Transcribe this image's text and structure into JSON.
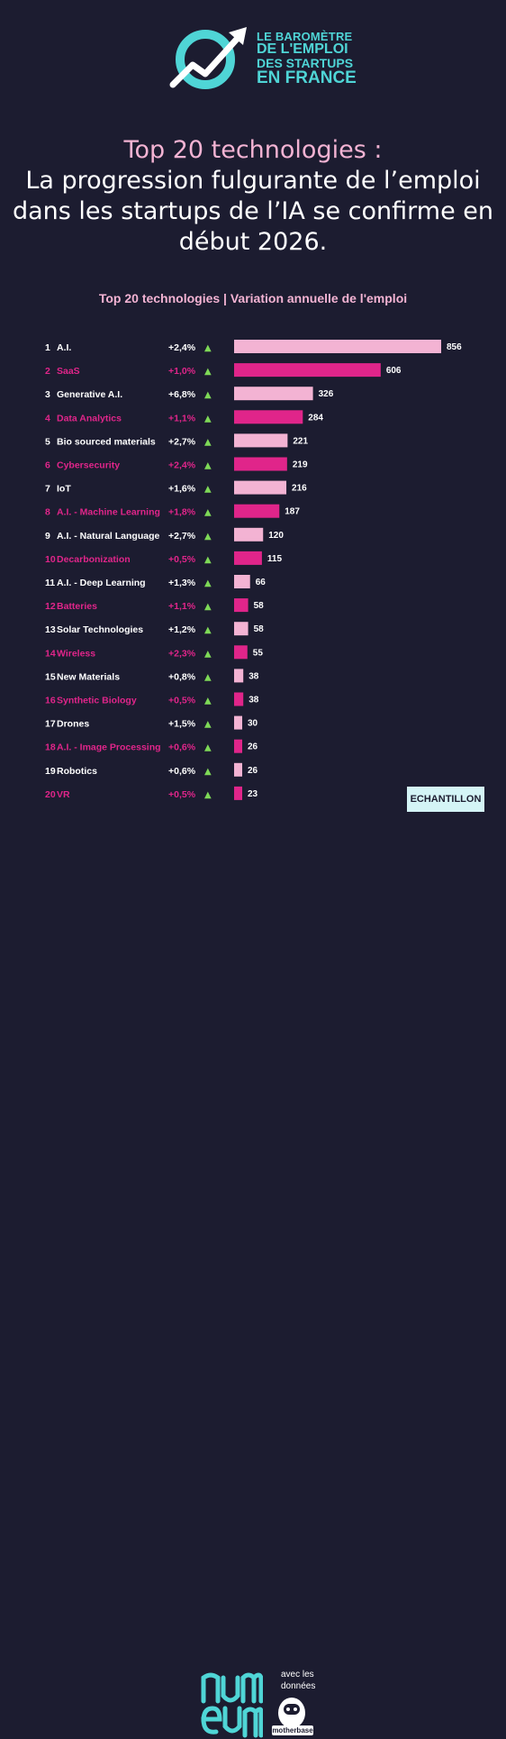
{
  "logo": {
    "line1": "LE BAROMÈTRE",
    "line2": "DE L'EMPLOI",
    "line3": "DES STARTUPS",
    "line4": "EN FRANCE",
    "brand_color": "#4fd5d6",
    "icon": "growth-arrow-icon"
  },
  "headline": {
    "line1": "Top 20 technologies :",
    "line2": "La progression fulgurante de l’emploi",
    "line3": "dans les startups de l’IA se confirme en",
    "line4": "début 2026."
  },
  "colors": {
    "background": "#1c1c30",
    "pink_light": "#f3b3d3",
    "pink_dark": "#e0258a",
    "up_arrow": "#7ed957",
    "accent_teal": "#4fd5d6"
  },
  "chart_data": {
    "type": "bar",
    "orientation": "horizontal",
    "title": "Top 20 technologies | Variation annuelle de l'emploi",
    "ranks": [
      "1",
      "2",
      "3",
      "4",
      "5",
      "6",
      "7",
      "8",
      "9",
      "10",
      "11",
      "12",
      "13",
      "14",
      "15",
      "16",
      "17",
      "18",
      "19",
      "20"
    ],
    "categories": [
      "A.I.",
      "SaaS",
      "Generative A.I.",
      "Data Analytics",
      "Bio sourced materials",
      "Cybersecurity",
      "IoT",
      "A.I. - Machine Learning",
      "A.I. - Natural Language",
      "Decarbonization",
      "A.I. - Deep Learning",
      "Batteries",
      "Solar Technologies",
      "Wireless",
      "New Materials",
      "Synthetic Biology",
      "Drones",
      "A.I. - Image Processing",
      "Robotics",
      "VR"
    ],
    "variations": [
      "+2,4%",
      "+1,0%",
      "+6,8%",
      "+1,1%",
      "+2,7%",
      "+2,4%",
      "+1,6%",
      "+1,8%",
      "+2,7%",
      "+0,5%",
      "+1,3%",
      "+1,1%",
      "+1,2%",
      "+2,3%",
      "+0,8%",
      "+0,5%",
      "+1,5%",
      "+0,6%",
      "+0,6%",
      "+0,5%"
    ],
    "values": [
      856,
      606,
      326,
      284,
      221,
      219,
      216,
      187,
      120,
      115,
      66,
      58,
      58,
      55,
      38,
      38,
      30,
      26,
      26,
      23
    ],
    "arrow_symbol": "▲",
    "xlim": [
      0,
      856
    ]
  },
  "badge": "ECHANTILLON",
  "footer": {
    "numeum_icon": "numeum-logo-icon",
    "avec_line1": "avec les",
    "avec_line2": "données",
    "motherbase_icon": "motherbase-logo-icon",
    "motherbase_label": "motherbase"
  }
}
